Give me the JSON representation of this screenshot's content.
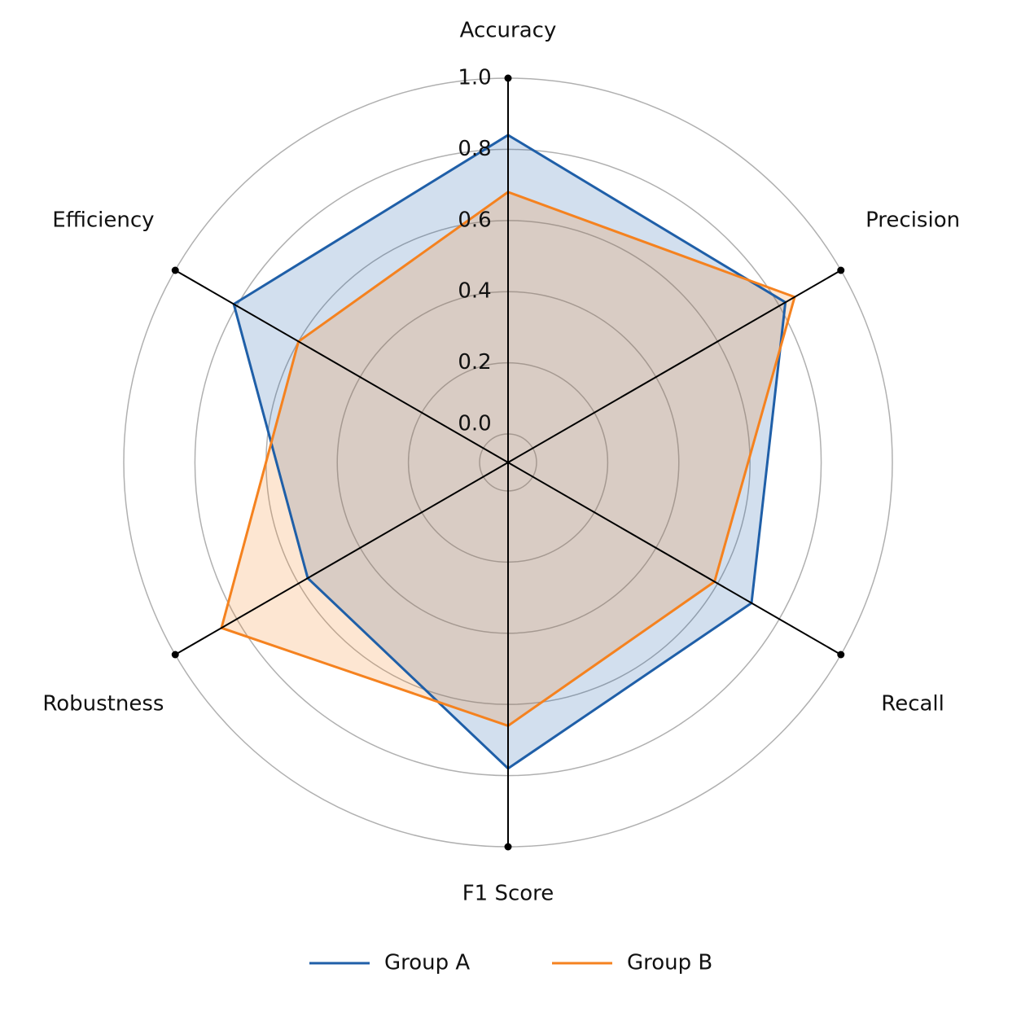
{
  "chart_data": {
    "type": "radar",
    "categories": [
      "Accuracy",
      "Precision",
      "Recall",
      "F1 Score",
      "Robustness",
      "Efficiency"
    ],
    "series": [
      {
        "name": "Group A",
        "color": "#1f5fa8",
        "values": [
          0.84,
          0.82,
          0.71,
          0.78,
          0.57,
          0.81
        ]
      },
      {
        "name": "Group B",
        "color": "#f5821f",
        "values": [
          0.68,
          0.85,
          0.59,
          0.66,
          0.85,
          0.6
        ]
      }
    ],
    "ylim": [
      -0.08,
      1.0
    ],
    "yticks": [
      {
        "value": 0,
        "label": "0.0"
      },
      0.2,
      0.4,
      0.6,
      0.8,
      {
        "value": 1,
        "label": "1.0"
      }
    ],
    "grid": true,
    "legend": "bottom"
  }
}
